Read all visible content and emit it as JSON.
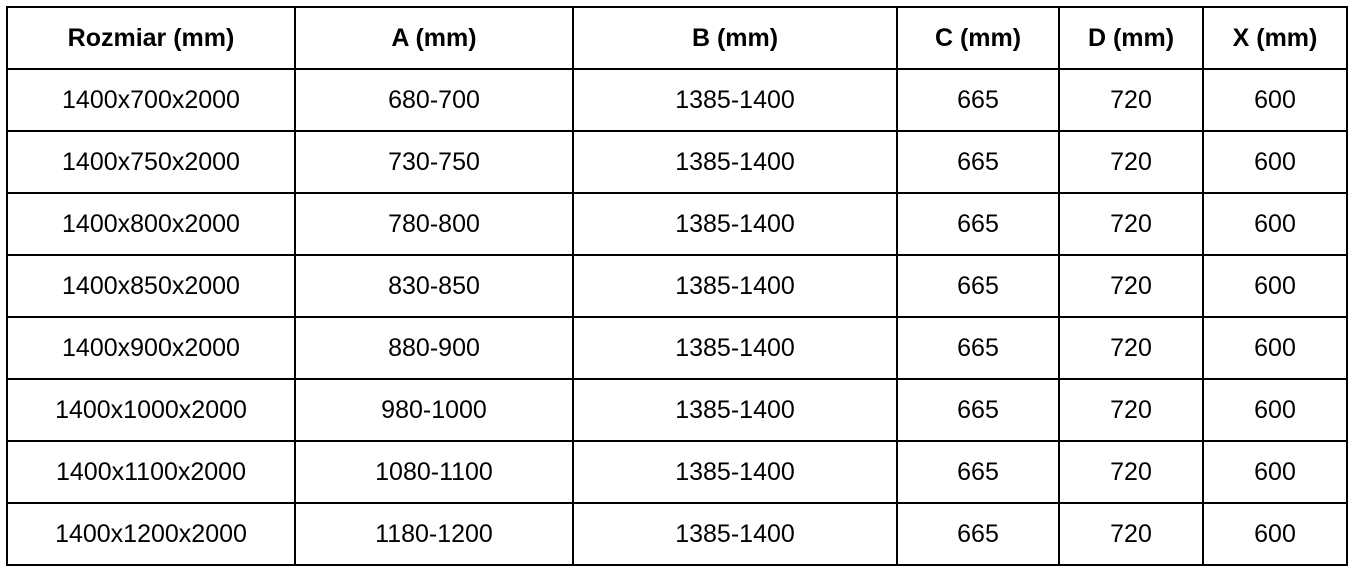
{
  "table": {
    "headers": [
      "Rozmiar (mm)",
      "A (mm)",
      "B (mm)",
      "C (mm)",
      "D (mm)",
      "X (mm)"
    ],
    "rows": [
      [
        "1400x700x2000",
        "680-700",
        "1385-1400",
        "665",
        "720",
        "600"
      ],
      [
        "1400x750x2000",
        "730-750",
        "1385-1400",
        "665",
        "720",
        "600"
      ],
      [
        "1400x800x2000",
        "780-800",
        "1385-1400",
        "665",
        "720",
        "600"
      ],
      [
        "1400x850x2000",
        "830-850",
        "1385-1400",
        "665",
        "720",
        "600"
      ],
      [
        "1400x900x2000",
        "880-900",
        "1385-1400",
        "665",
        "720",
        "600"
      ],
      [
        "1400x1000x2000",
        "980-1000",
        "1385-1400",
        "665",
        "720",
        "600"
      ],
      [
        "1400x1100x2000",
        "1080-1100",
        "1385-1400",
        "665",
        "720",
        "600"
      ],
      [
        "1400x1200x2000",
        "1180-1200",
        "1385-1400",
        "665",
        "720",
        "600"
      ]
    ]
  }
}
